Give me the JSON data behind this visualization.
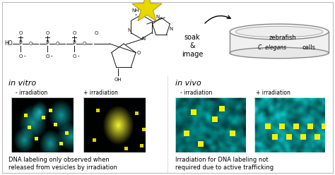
{
  "background_color": "#ffffff",
  "star_color": "#e8d800",
  "star_edge_color": "#b8a000",
  "soak_text": "soak\n&\nimage",
  "petri_text_zebrafish": "zebrafish",
  "petri_text_celegans": "C. elegans",
  "petri_text_cells": "cells",
  "in_vitro_label": "in vitro",
  "in_vivo_label": "in vivo",
  "minus_irr_label": "- irradiation",
  "plus_irr_label": "+ irradiation",
  "caption_vitro": "DNA labeling only observed when\nreleased from vesicles by irradiation",
  "caption_vivo": "Irradiation for DNA labeling not\nrequired due to active trafficking",
  "chem_col": "#111111",
  "arrow_col": "#111111"
}
